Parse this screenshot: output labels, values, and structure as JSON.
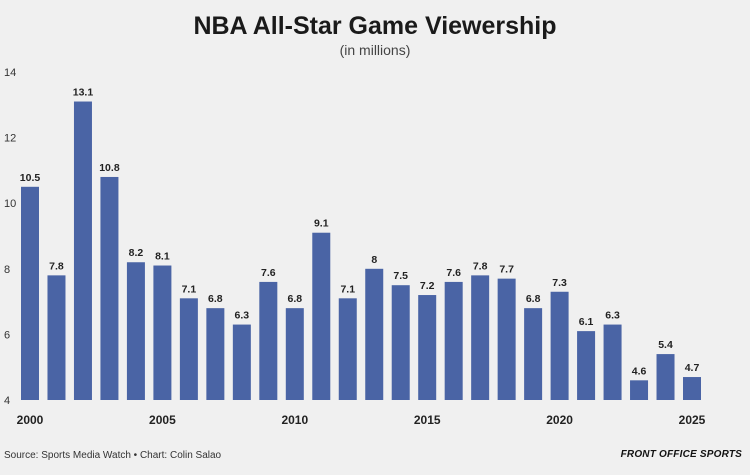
{
  "title": "NBA All-Star Game Viewership",
  "subtitle": "(in millions)",
  "source": "Source: Sports Media Watch • Chart: Colin Salao",
  "brand": "FRONT OFFICE SPORTS",
  "chart_data": {
    "type": "bar",
    "title": "NBA All-Star Game Viewership",
    "subtitle": "(in millions)",
    "x": [
      2000,
      2001,
      2002,
      2003,
      2004,
      2005,
      2006,
      2007,
      2008,
      2009,
      2010,
      2011,
      2012,
      2013,
      2014,
      2015,
      2016,
      2017,
      2018,
      2019,
      2020,
      2021,
      2022,
      2023,
      2024,
      2025
    ],
    "values": [
      10.5,
      7.8,
      13.1,
      10.8,
      8.2,
      8.1,
      7.1,
      6.8,
      6.3,
      7.6,
      6.8,
      9.1,
      7.1,
      8,
      7.5,
      7.2,
      7.6,
      7.8,
      7.7,
      6.8,
      7.3,
      6.1,
      6.3,
      4.6,
      5.4,
      4.7
    ],
    "labels": [
      "10.5",
      "7.8",
      "13.1",
      "10.8",
      "8.2",
      "8.1",
      "7.1",
      "6.8",
      "6.3",
      "7.6",
      "6.8",
      "9.1",
      "7.1",
      "8",
      "7.5",
      "7.2",
      "7.6",
      "7.8",
      "7.7",
      "6.8",
      "7.3",
      "6.1",
      "6.3",
      "4.6",
      "5.4",
      "4.7"
    ],
    "x_tick_labels": [
      "2000",
      "2005",
      "2010",
      "2015",
      "2020",
      "2025"
    ],
    "y_tick_labels": [
      "4",
      "6",
      "8",
      "10",
      "12",
      "14"
    ],
    "ylim": [
      4,
      14
    ],
    "xlabel": "",
    "ylabel": "",
    "bar_color": "#4a64a5",
    "grid": false
  }
}
